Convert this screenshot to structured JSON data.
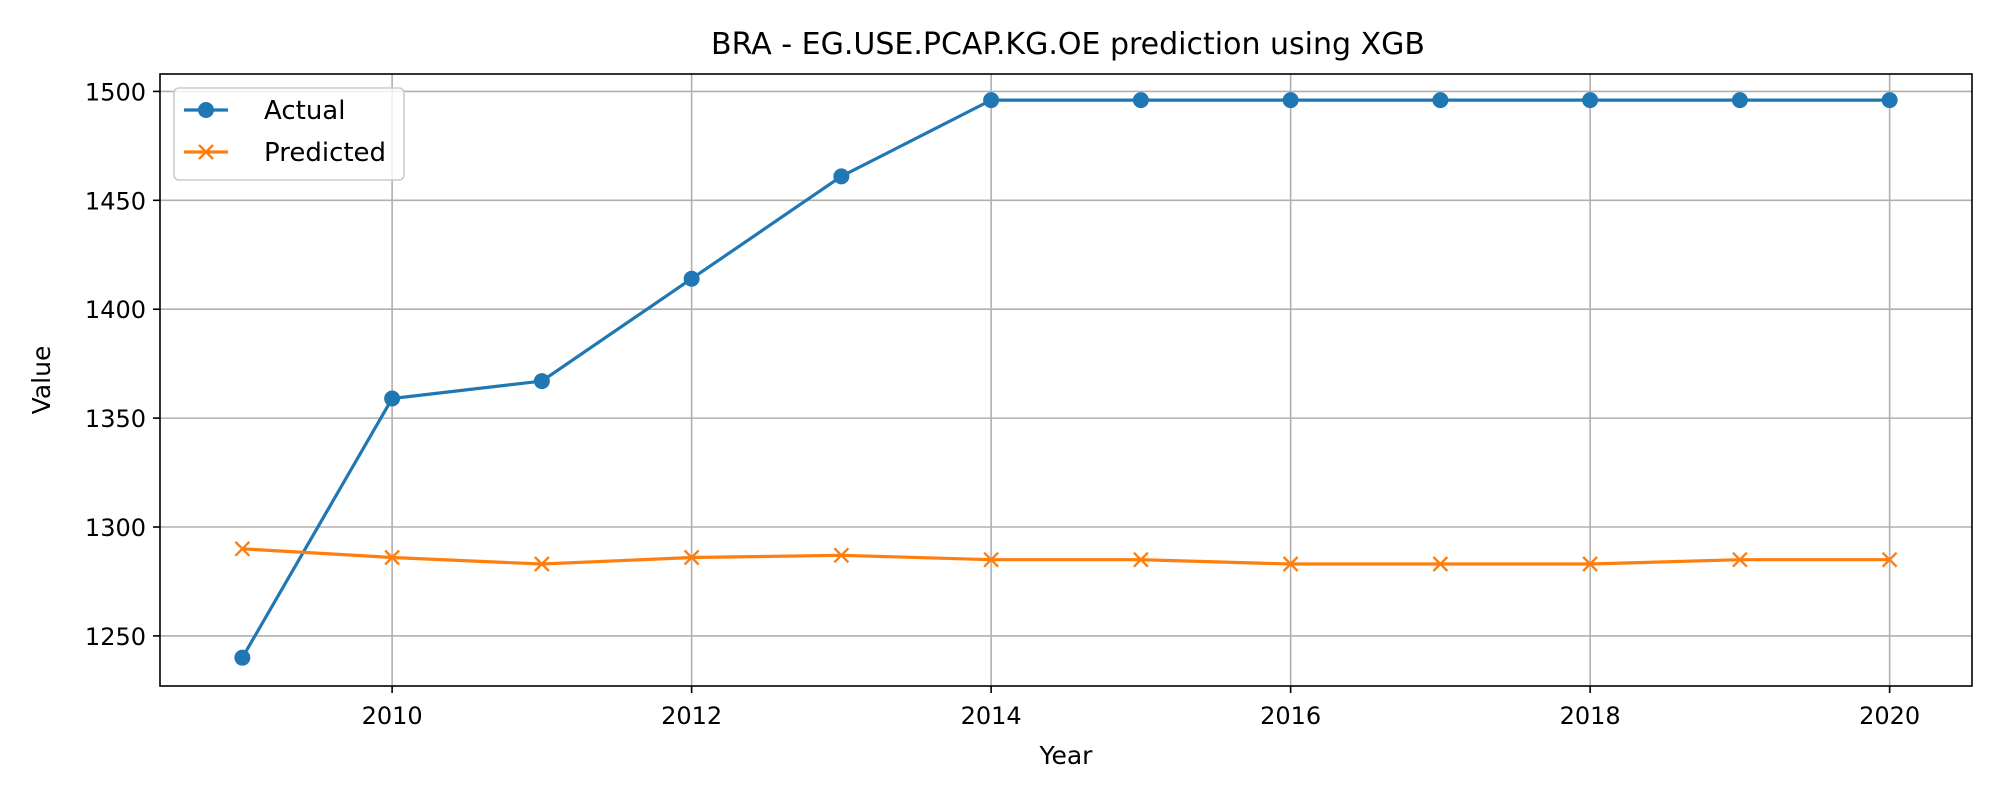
{
  "chart_data": {
    "type": "line",
    "title": "BRA - EG.USE.PCAP.KG.OE prediction using XGB",
    "xlabel": "Year",
    "ylabel": "Value",
    "x": [
      2009,
      2010,
      2011,
      2012,
      2013,
      2014,
      2015,
      2016,
      2017,
      2018,
      2019,
      2020
    ],
    "xlim": [
      2008.45,
      2020.55
    ],
    "ylim": [
      1227,
      1508
    ],
    "xticks": [
      2010,
      2012,
      2014,
      2016,
      2018,
      2020
    ],
    "yticks": [
      1250,
      1300,
      1350,
      1400,
      1450,
      1500
    ],
    "grid": true,
    "legend_position": "upper-left",
    "series": [
      {
        "name": "Actual",
        "marker": "circle",
        "color": "#1f77b4",
        "values": [
          1240,
          1359,
          1367,
          1414,
          1461,
          1496,
          1496,
          1496,
          1496,
          1496,
          1496,
          1496
        ]
      },
      {
        "name": "Predicted",
        "marker": "x",
        "color": "#ff7f0e",
        "values": [
          1290,
          1286,
          1283,
          1286,
          1287,
          1285,
          1285,
          1283,
          1283,
          1283,
          1285,
          1285
        ]
      }
    ]
  }
}
